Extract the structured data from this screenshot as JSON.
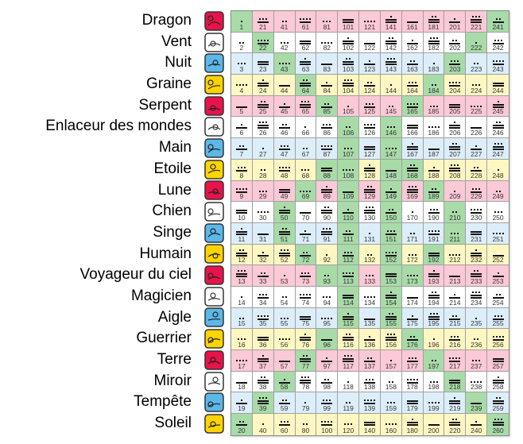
{
  "colors": {
    "red": "#fcc9d6",
    "white": "#ffffff",
    "blue": "#ddeefb",
    "yellow": "#fff7c2",
    "green": "#a8dba8",
    "icon_red": "#e8134a",
    "icon_white": "#ffffff",
    "icon_blue": "#5bb8e8",
    "icon_yellow": "#ffd400"
  },
  "rows": [
    {
      "name": "Dragon",
      "tone": "red",
      "icon": "dragon-glyph-icon",
      "numbers": [
        1,
        21,
        41,
        61,
        81,
        101,
        121,
        141,
        161,
        181,
        201,
        221,
        241
      ],
      "numerals": [
        1,
        8,
        2,
        9,
        3,
        10,
        4,
        11,
        5,
        12,
        6,
        13,
        7
      ],
      "highlighted": [
        1,
        241
      ]
    },
    {
      "name": "Vent",
      "tone": "white",
      "icon": "wind-glyph-icon",
      "numbers": [
        2,
        22,
        42,
        62,
        82,
        102,
        122,
        142,
        162,
        182,
        202,
        222,
        242
      ],
      "numerals": [
        2,
        9,
        3,
        10,
        4,
        11,
        5,
        12,
        6,
        13,
        7,
        1,
        8
      ],
      "highlighted": [
        22,
        222
      ]
    },
    {
      "name": "Nuit",
      "tone": "blue",
      "icon": "night-glyph-icon",
      "numbers": [
        3,
        23,
        43,
        63,
        83,
        103,
        123,
        143,
        163,
        183,
        203,
        223,
        243
      ],
      "numerals": [
        3,
        10,
        4,
        11,
        5,
        12,
        6,
        13,
        7,
        1,
        8,
        2,
        9
      ],
      "highlighted": [
        43,
        203
      ]
    },
    {
      "name": "Graine",
      "tone": "yellow",
      "icon": "seed-glyph-icon",
      "numbers": [
        4,
        24,
        44,
        64,
        84,
        104,
        124,
        144,
        164,
        184,
        204,
        224,
        244
      ],
      "numerals": [
        4,
        11,
        5,
        12,
        6,
        13,
        7,
        1,
        8,
        2,
        9,
        3,
        10
      ],
      "highlighted": [
        64,
        184
      ]
    },
    {
      "name": "Serpent",
      "tone": "red",
      "icon": "serpent-glyph-icon",
      "numbers": [
        5,
        25,
        45,
        65,
        85,
        105,
        125,
        145,
        165,
        185,
        205,
        225,
        245
      ],
      "numerals": [
        5,
        12,
        6,
        13,
        7,
        1,
        8,
        2,
        9,
        3,
        10,
        4,
        11
      ],
      "highlighted": [
        85,
        165
      ]
    },
    {
      "name": "Enlaceur des mondes",
      "tone": "white",
      "icon": "worldbridger-glyph-icon",
      "numbers": [
        6,
        26,
        46,
        66,
        86,
        106,
        126,
        146,
        166,
        186,
        206,
        226,
        246
      ],
      "numerals": [
        6,
        13,
        7,
        1,
        8,
        2,
        9,
        3,
        10,
        4,
        11,
        5,
        12
      ],
      "highlighted": [
        106,
        146
      ]
    },
    {
      "name": "Main",
      "tone": "blue",
      "icon": "hand-glyph-icon",
      "numbers": [
        7,
        27,
        47,
        67,
        87,
        107,
        127,
        147,
        167,
        187,
        207,
        227,
        247
      ],
      "numerals": [
        7,
        1,
        8,
        2,
        9,
        3,
        10,
        4,
        11,
        5,
        12,
        6,
        13
      ],
      "highlighted": [
        107,
        147
      ]
    },
    {
      "name": "Etoile",
      "tone": "yellow",
      "icon": "star-glyph-icon",
      "numbers": [
        8,
        28,
        48,
        68,
        88,
        108,
        128,
        148,
        168,
        188,
        208,
        228,
        248
      ],
      "numerals": [
        8,
        2,
        9,
        3,
        10,
        4,
        11,
        5,
        12,
        6,
        13,
        7,
        1
      ],
      "highlighted": [
        88,
        108,
        148,
        168
      ]
    },
    {
      "name": "Lune",
      "tone": "red",
      "icon": "moon-glyph-icon",
      "numbers": [
        9,
        29,
        49,
        69,
        89,
        109,
        129,
        149,
        169,
        189,
        209,
        229,
        249
      ],
      "numerals": [
        9,
        3,
        10,
        4,
        11,
        5,
        12,
        6,
        13,
        7,
        1,
        8,
        2
      ],
      "highlighted": [
        69,
        109,
        149,
        189
      ]
    },
    {
      "name": "Chien",
      "tone": "white",
      "icon": "dog-glyph-icon",
      "numbers": [
        10,
        30,
        50,
        70,
        90,
        110,
        130,
        150,
        170,
        190,
        210,
        230,
        250
      ],
      "numerals": [
        10,
        4,
        11,
        5,
        12,
        6,
        13,
        7,
        1,
        8,
        2,
        9,
        3
      ],
      "highlighted": [
        50,
        110,
        150,
        210
      ]
    },
    {
      "name": "Singe",
      "tone": "blue",
      "icon": "monkey-glyph-icon",
      "numbers": [
        11,
        31,
        51,
        71,
        91,
        111,
        131,
        151,
        171,
        191,
        211,
        231,
        251
      ],
      "numerals": [
        11,
        5,
        12,
        6,
        13,
        7,
        1,
        8,
        2,
        9,
        3,
        10,
        4
      ],
      "highlighted": [
        51,
        111,
        151,
        211
      ]
    },
    {
      "name": "Humain",
      "tone": "yellow",
      "icon": "human-glyph-icon",
      "numbers": [
        12,
        32,
        52,
        72,
        92,
        112,
        132,
        152,
        172,
        192,
        212,
        232,
        252
      ],
      "numerals": [
        12,
        6,
        13,
        7,
        1,
        8,
        2,
        9,
        3,
        10,
        4,
        11,
        5
      ],
      "highlighted": [
        72,
        112,
        152,
        192
      ]
    },
    {
      "name": "Voyageur du ciel",
      "tone": "red",
      "icon": "skywalker-glyph-icon",
      "numbers": [
        13,
        33,
        53,
        73,
        93,
        113,
        133,
        153,
        173,
        193,
        213,
        233,
        253
      ],
      "numerals": [
        13,
        7,
        1,
        8,
        2,
        9,
        3,
        10,
        4,
        11,
        5,
        12,
        6
      ],
      "highlighted": [
        93,
        113,
        153,
        173
      ]
    },
    {
      "name": "Magicien",
      "tone": "white",
      "icon": "wizard-glyph-icon",
      "numbers": [
        14,
        34,
        54,
        74,
        94,
        114,
        134,
        154,
        174,
        194,
        214,
        234,
        254
      ],
      "numerals": [
        1,
        8,
        2,
        9,
        3,
        10,
        4,
        11,
        5,
        12,
        6,
        13,
        7
      ],
      "highlighted": [
        114,
        154
      ]
    },
    {
      "name": "Aigle",
      "tone": "blue",
      "icon": "eagle-glyph-icon",
      "numbers": [
        15,
        35,
        55,
        75,
        95,
        115,
        135,
        155,
        175,
        195,
        215,
        235,
        255
      ],
      "numerals": [
        2,
        9,
        3,
        10,
        4,
        11,
        5,
        12,
        6,
        13,
        7,
        1,
        8
      ],
      "highlighted": [
        115,
        155
      ]
    },
    {
      "name": "Guerrier",
      "tone": "yellow",
      "icon": "warrior-glyph-icon",
      "numbers": [
        16,
        36,
        56,
        76,
        96,
        116,
        136,
        156,
        176,
        196,
        216,
        236,
        256
      ],
      "numerals": [
        3,
        10,
        4,
        11,
        5,
        12,
        6,
        13,
        7,
        1,
        8,
        2,
        9
      ],
      "highlighted": [
        96,
        176
      ]
    },
    {
      "name": "Terre",
      "tone": "red",
      "icon": "earth-glyph-icon",
      "numbers": [
        17,
        37,
        57,
        77,
        97,
        117,
        137,
        157,
        177,
        197,
        217,
        237,
        257
      ],
      "numerals": [
        4,
        11,
        5,
        12,
        6,
        13,
        7,
        1,
        8,
        2,
        9,
        3,
        10
      ],
      "highlighted": [
        77,
        197
      ]
    },
    {
      "name": "Miroir",
      "tone": "white",
      "icon": "mirror-glyph-icon",
      "numbers": [
        18,
        38,
        58,
        78,
        98,
        118,
        138,
        158,
        178,
        198,
        218,
        238,
        258
      ],
      "numerals": [
        5,
        12,
        6,
        13,
        7,
        1,
        8,
        2,
        9,
        3,
        10,
        4,
        11
      ],
      "highlighted": [
        58,
        218
      ]
    },
    {
      "name": "Tempête",
      "tone": "blue",
      "icon": "storm-glyph-icon",
      "numbers": [
        19,
        39,
        59,
        79,
        99,
        119,
        139,
        159,
        179,
        199,
        219,
        239,
        259
      ],
      "numerals": [
        6,
        13,
        7,
        1,
        8,
        2,
        9,
        3,
        10,
        4,
        11,
        5,
        12
      ],
      "highlighted": [
        39,
        239
      ]
    },
    {
      "name": "Soleil",
      "tone": "yellow",
      "icon": "sun-glyph-icon",
      "numbers": [
        20,
        40,
        60,
        80,
        100,
        120,
        140,
        160,
        180,
        200,
        220,
        240,
        260
      ],
      "numerals": [
        7,
        1,
        8,
        2,
        9,
        3,
        10,
        4,
        11,
        5,
        12,
        6,
        13
      ],
      "highlighted": [
        20,
        260
      ]
    }
  ]
}
